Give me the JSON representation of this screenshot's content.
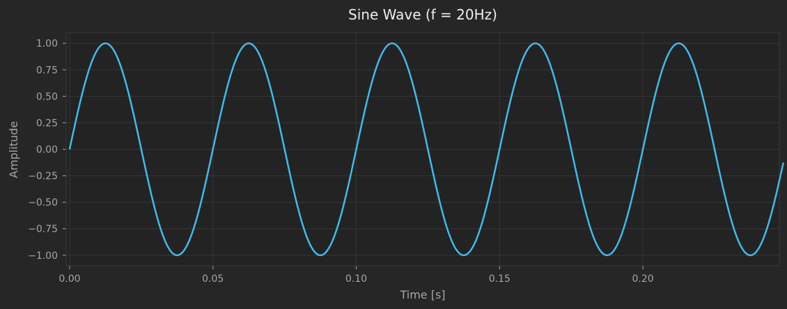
{
  "chart_data": {
    "type": "line",
    "title": "Sine Wave (f = 20Hz)",
    "xlabel": "Time [s]",
    "ylabel": "Amplitude",
    "xlim": [
      -0.0012,
      0.2476
    ],
    "ylim": [
      -1.1,
      1.1
    ],
    "x_ticks": [
      {
        "value": 0.0,
        "label": "0.00"
      },
      {
        "value": 0.05,
        "label": "0.05"
      },
      {
        "value": 0.1,
        "label": "0.10"
      },
      {
        "value": 0.15,
        "label": "0.15"
      },
      {
        "value": 0.2,
        "label": "0.20"
      }
    ],
    "y_ticks": [
      {
        "value": 1.0,
        "label": "1.00"
      },
      {
        "value": 0.75,
        "label": "0.75"
      },
      {
        "value": 0.5,
        "label": "0.50"
      },
      {
        "value": 0.25,
        "label": "0.25"
      },
      {
        "value": 0.0,
        "label": "0.00"
      },
      {
        "value": -0.25,
        "label": "−0.25"
      },
      {
        "value": -0.5,
        "label": "−0.50"
      },
      {
        "value": -0.75,
        "label": "−0.75"
      },
      {
        "value": -1.0,
        "label": "−1.00"
      }
    ],
    "grid": true,
    "series": [
      {
        "color": "#3fbbeb",
        "x": [
          0.0,
          0.005,
          0.0125,
          0.02,
          0.025,
          0.03,
          0.0375,
          0.045,
          0.05,
          0.055,
          0.0625,
          0.07,
          0.075,
          0.08,
          0.0875,
          0.095,
          0.1,
          0.105,
          0.1125,
          0.12,
          0.125,
          0.13,
          0.1375,
          0.145,
          0.15,
          0.155,
          0.1625,
          0.17,
          0.175,
          0.18,
          0.1875,
          0.195,
          0.2,
          0.205,
          0.2125,
          0.22,
          0.225,
          0.23,
          0.2375,
          0.245,
          0.249
        ],
        "y": [
          0.0,
          0.588,
          1.0,
          0.588,
          0.0,
          -0.588,
          -1.0,
          -0.588,
          0.0,
          0.588,
          1.0,
          0.588,
          0.0,
          -0.588,
          -1.0,
          -0.588,
          0.0,
          0.588,
          1.0,
          0.588,
          0.0,
          -0.588,
          -1.0,
          -0.588,
          0.0,
          0.588,
          1.0,
          0.588,
          0.0,
          -0.588,
          -1.0,
          -0.588,
          0.0,
          0.588,
          1.0,
          0.588,
          0.0,
          -0.588,
          -1.0,
          -0.588,
          -0.125
        ]
      }
    ]
  }
}
